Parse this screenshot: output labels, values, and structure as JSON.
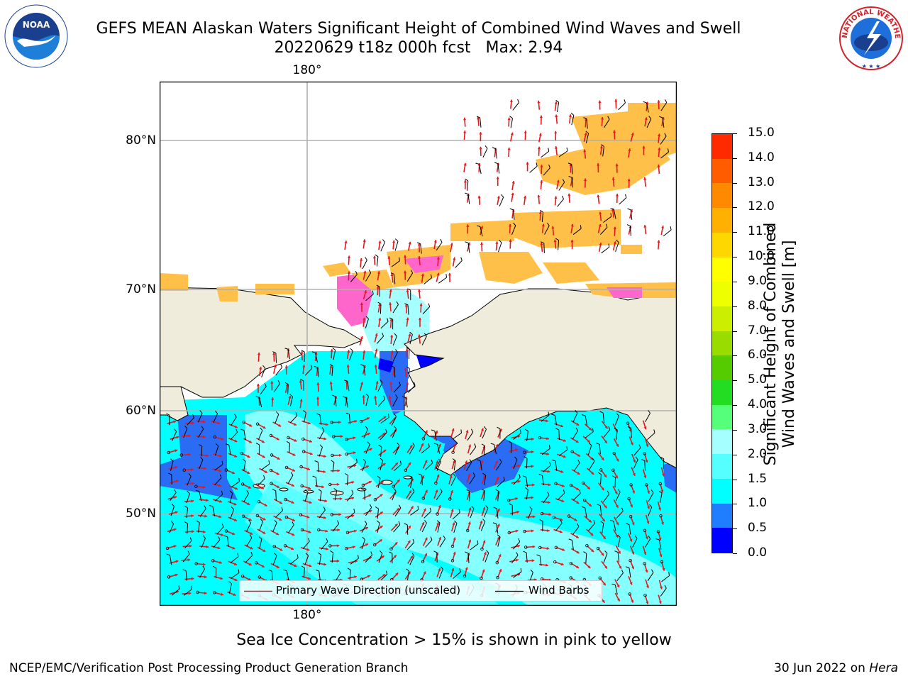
{
  "header": {
    "title_line1": "GEFS MEAN Alaskan Waters Significant Height of Combined Wind Waves and Swell",
    "title_line2_date": "20220629 t18z 000h fcst",
    "title_line2_max": "Max: 2.94",
    "noaa_logo_text": "NOAA",
    "nws_logo_text": "NATIONAL WEATHER SERVICE"
  },
  "map": {
    "lat_labels": [
      "80°N",
      "70°N",
      "60°N",
      "50°N"
    ],
    "lon_label_top": "180°",
    "lon_label_bottom": "180°",
    "legend": {
      "wave_dir": "Primary Wave Direction (unscaled)",
      "wind_barbs": "Wind Barbs"
    },
    "colors": {
      "land": "#efecdc",
      "ocean_cyan": "#00ffff",
      "ocean_light": "#a6ffff",
      "ocean_mid": "#55ffff",
      "ocean_blue": "#2b6cf5",
      "ocean_deep": "#0000ff",
      "ice_pink": "#ff66cc",
      "ice_orange": "#ffc04a",
      "arrow": "#e8161a"
    }
  },
  "colorbar": {
    "label_line1": "Significant Height of Combined",
    "label_line2": "Wind Waves and Swell [m]",
    "ticks": [
      "0.0",
      "0.5",
      "1.0",
      "1.5",
      "2.0",
      "3.0",
      "4.0",
      "5.0",
      "6.0",
      "7.0",
      "8.0",
      "9.0",
      "10.0",
      "11.0",
      "12.0",
      "13.0",
      "14.0",
      "15.0"
    ],
    "colors": [
      "#0000ff",
      "#1f7dff",
      "#00ffff",
      "#55ffff",
      "#a6ffff",
      "#55ff7a",
      "#22dd22",
      "#55cc00",
      "#99dd00",
      "#ccee00",
      "#eeff00",
      "#ffff00",
      "#ffd700",
      "#ffb000",
      "#ff8a00",
      "#ff5c00",
      "#ff2a00",
      "#ff0000"
    ]
  },
  "footer": {
    "caption": "Sea Ice Concentration > 15% is shown in pink to yellow",
    "left": "NCEP/EMC/Verification Post Processing Product Generation Branch",
    "right_date": "30 Jun 2022 on ",
    "right_host": "Hera"
  }
}
